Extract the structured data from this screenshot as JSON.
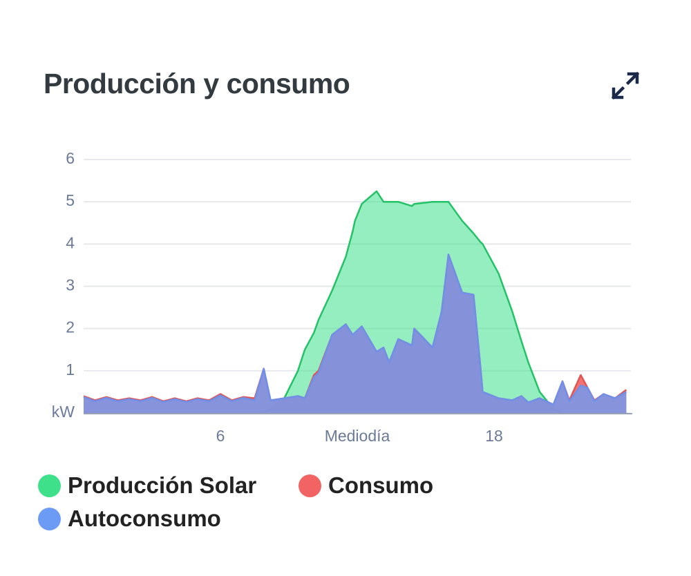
{
  "chart_data": {
    "type": "area",
    "title": "Producción y consumo",
    "x": [
      0,
      0.5,
      1,
      1.5,
      2,
      2.5,
      3,
      3.5,
      4,
      4.5,
      5,
      5.5,
      6,
      6.5,
      7,
      7.5,
      7.9,
      8.2,
      8.8,
      9.4,
      9.7,
      10.1,
      10.3,
      10.9,
      11.5,
      11.8,
      11.9,
      12.2,
      12.85,
      13.15,
      13.4,
      13.8,
      14.4,
      14.5,
      15.3,
      15.7,
      16.0,
      16.6,
      17.1,
      17.4,
      17.5,
      18.2,
      18.8,
      19.2,
      19.5,
      20,
      20.6,
      21,
      21.3,
      21.8,
      22.1,
      22.4,
      22.8,
      23.3,
      23.8
    ],
    "series": [
      {
        "name": "Producción Solar",
        "color": "#3ee08a",
        "values": [
          0,
          0,
          0,
          0,
          0,
          0,
          0,
          0,
          0,
          0,
          0,
          0,
          0,
          0,
          0,
          0,
          0,
          0.1,
          0.35,
          1.0,
          1.5,
          1.9,
          2.2,
          2.9,
          3.7,
          4.3,
          4.55,
          4.95,
          5.25,
          5.0,
          5.0,
          5.0,
          4.9,
          4.95,
          5.0,
          5.0,
          5.0,
          4.55,
          4.25,
          4.05,
          4.0,
          3.3,
          2.4,
          1.7,
          1.2,
          0.5,
          0.1,
          0,
          0,
          0,
          0,
          0,
          0,
          0,
          0
        ]
      },
      {
        "name": "Consumo",
        "color": "#f26363",
        "values": [
          0.4,
          0.3,
          0.38,
          0.3,
          0.35,
          0.3,
          0.38,
          0.28,
          0.35,
          0.28,
          0.35,
          0.3,
          0.45,
          0.3,
          0.38,
          0.35,
          1.05,
          0.3,
          0.35,
          0.4,
          0.35,
          0.9,
          1.0,
          1.85,
          2.1,
          1.85,
          1.9,
          2.05,
          1.45,
          1.55,
          1.2,
          1.75,
          1.6,
          2.0,
          1.55,
          2.4,
          3.75,
          2.85,
          2.8,
          1.1,
          0.5,
          0.35,
          0.3,
          0.4,
          0.25,
          0.35,
          0.2,
          0.75,
          0.3,
          0.9,
          0.6,
          0.3,
          0.45,
          0.35,
          0.55
        ]
      },
      {
        "name": "Autoconsumo",
        "color": "#6b9bf5",
        "values": [
          0.38,
          0.28,
          0.36,
          0.28,
          0.33,
          0.28,
          0.36,
          0.26,
          0.33,
          0.26,
          0.33,
          0.28,
          0.42,
          0.28,
          0.36,
          0.3,
          1.05,
          0.3,
          0.35,
          0.4,
          0.35,
          0.85,
          0.95,
          1.85,
          2.1,
          1.85,
          1.9,
          2.05,
          1.45,
          1.55,
          1.2,
          1.75,
          1.6,
          2.0,
          1.55,
          2.4,
          3.75,
          2.85,
          2.8,
          1.1,
          0.5,
          0.35,
          0.3,
          0.4,
          0.25,
          0.35,
          0.2,
          0.75,
          0.28,
          0.65,
          0.6,
          0.28,
          0.45,
          0.35,
          0.5
        ]
      }
    ],
    "xlim": [
      0,
      24
    ],
    "xticks": [
      6,
      {
        "value": 12,
        "label": "Mediodía"
      },
      18
    ],
    "ylim": [
      0,
      6
    ],
    "yticks": [
      {
        "value": 0,
        "label": "kW"
      },
      1,
      2,
      3,
      4,
      5,
      6
    ],
    "grid": true
  }
}
